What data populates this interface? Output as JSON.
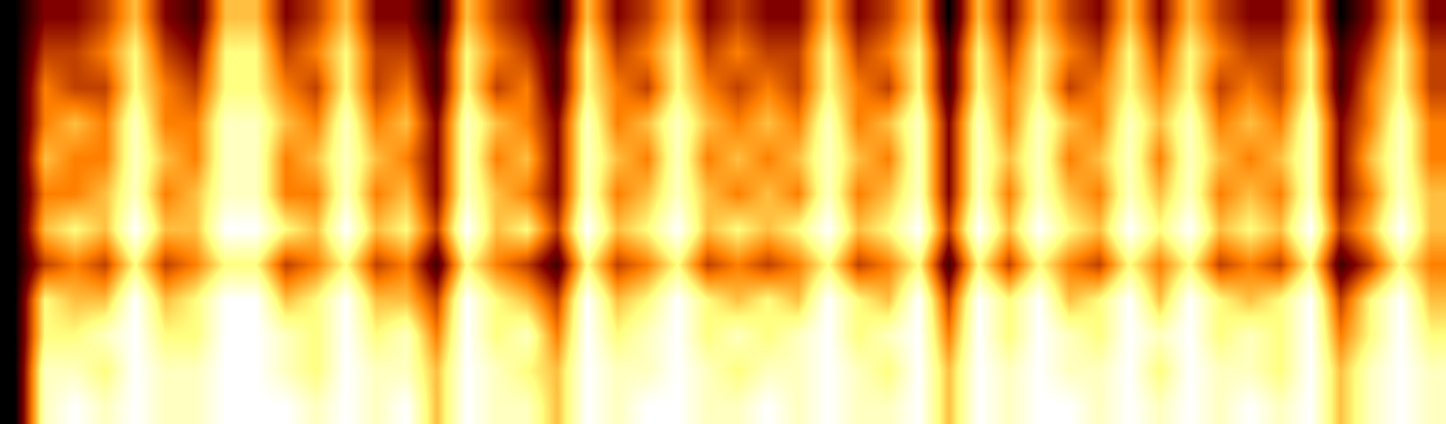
{
  "chart_data": {
    "type": "heatmap",
    "tick_labels": false,
    "grid": false,
    "cells": [
      [
        1,
        3,
        3,
        4,
        6,
        3,
        2,
        6,
        6,
        3,
        4,
        6,
        3,
        3,
        1,
        6,
        4,
        3,
        1,
        6,
        3,
        4,
        6,
        3,
        4,
        3,
        3,
        6,
        3,
        4,
        6,
        1,
        6,
        3,
        6,
        4,
        3,
        6,
        3,
        6,
        4,
        3,
        3,
        6,
        1,
        3,
        6,
        3
      ],
      [
        1,
        4,
        4,
        5,
        7,
        4,
        3,
        7,
        7,
        4,
        5,
        7,
        4,
        4,
        2,
        7,
        5,
        4,
        2,
        7,
        4,
        5,
        7,
        4,
        5,
        4,
        4,
        7,
        4,
        5,
        7,
        2,
        7,
        4,
        7,
        5,
        4,
        7,
        4,
        7,
        5,
        4,
        4,
        7,
        2,
        4,
        7,
        4
      ],
      [
        1,
        5,
        4,
        4,
        7,
        5,
        4,
        7,
        7,
        5,
        4,
        7,
        4,
        5,
        2,
        7,
        4,
        5,
        2,
        7,
        5,
        4,
        7,
        5,
        4,
        5,
        4,
        7,
        5,
        4,
        7,
        2,
        7,
        5,
        7,
        4,
        5,
        7,
        5,
        7,
        4,
        5,
        4,
        7,
        2,
        5,
        7,
        4
      ],
      [
        1,
        5,
        6,
        5,
        8,
        5,
        5,
        8,
        8,
        6,
        5,
        8,
        5,
        6,
        3,
        8,
        6,
        5,
        3,
        8,
        5,
        6,
        8,
        6,
        5,
        6,
        5,
        8,
        5,
        6,
        8,
        3,
        8,
        5,
        8,
        6,
        5,
        8,
        6,
        8,
        5,
        6,
        5,
        8,
        3,
        5,
        8,
        5
      ],
      [
        1,
        6,
        5,
        5,
        8,
        6,
        5,
        8,
        8,
        5,
        6,
        8,
        6,
        5,
        3,
        8,
        5,
        6,
        3,
        8,
        6,
        5,
        8,
        5,
        6,
        5,
        6,
        8,
        6,
        5,
        8,
        3,
        8,
        6,
        8,
        5,
        6,
        8,
        5,
        8,
        6,
        5,
        6,
        8,
        3,
        6,
        8,
        5
      ],
      [
        1,
        5,
        5,
        6,
        8,
        5,
        6,
        8,
        8,
        5,
        5,
        8,
        5,
        6,
        3,
        8,
        6,
        5,
        3,
        8,
        5,
        6,
        8,
        6,
        5,
        6,
        5,
        8,
        5,
        6,
        8,
        3,
        8,
        5,
        8,
        6,
        5,
        8,
        6,
        8,
        5,
        6,
        5,
        8,
        3,
        5,
        8,
        6
      ],
      [
        1,
        6,
        7,
        6,
        9,
        6,
        6,
        9,
        9,
        7,
        6,
        9,
        6,
        7,
        4,
        9,
        6,
        7,
        4,
        9,
        6,
        7,
        9,
        6,
        7,
        6,
        7,
        9,
        6,
        7,
        9,
        4,
        9,
        6,
        9,
        7,
        6,
        9,
        7,
        9,
        6,
        7,
        6,
        9,
        4,
        6,
        9,
        6
      ],
      [
        1,
        4,
        5,
        4,
        7,
        4,
        5,
        7,
        7,
        4,
        5,
        7,
        4,
        5,
        2,
        7,
        5,
        4,
        2,
        7,
        4,
        5,
        7,
        4,
        5,
        4,
        5,
        7,
        4,
        5,
        7,
        2,
        7,
        4,
        7,
        5,
        4,
        7,
        5,
        7,
        4,
        5,
        4,
        7,
        2,
        4,
        7,
        5
      ],
      [
        1,
        7,
        6,
        6,
        9,
        6,
        7,
        9,
        9,
        6,
        7,
        9,
        6,
        6,
        4,
        9,
        7,
        6,
        4,
        9,
        6,
        7,
        9,
        7,
        6,
        7,
        6,
        9,
        7,
        6,
        9,
        4,
        9,
        7,
        9,
        6,
        7,
        9,
        6,
        9,
        7,
        6,
        7,
        9,
        4,
        7,
        9,
        6
      ],
      [
        1,
        7,
        7,
        8,
        9,
        7,
        7,
        9,
        9,
        8,
        7,
        9,
        7,
        8,
        5,
        9,
        7,
        8,
        5,
        9,
        7,
        8,
        9,
        7,
        8,
        7,
        8,
        9,
        7,
        8,
        9,
        5,
        9,
        7,
        9,
        8,
        7,
        9,
        8,
        9,
        7,
        8,
        7,
        9,
        5,
        7,
        9,
        7
      ],
      [
        1,
        8,
        8,
        7,
        9,
        8,
        8,
        9,
        9,
        8,
        7,
        9,
        8,
        8,
        6,
        9,
        8,
        7,
        6,
        9,
        8,
        8,
        9,
        8,
        7,
        8,
        8,
        9,
        8,
        7,
        9,
        6,
        9,
        8,
        9,
        8,
        8,
        9,
        7,
        9,
        8,
        8,
        7,
        9,
        6,
        8,
        9,
        8
      ],
      [
        1,
        8,
        9,
        8,
        9,
        8,
        8,
        9,
        9,
        9,
        8,
        9,
        8,
        9,
        6,
        9,
        8,
        8,
        6,
        9,
        8,
        9,
        9,
        8,
        8,
        9,
        8,
        9,
        8,
        8,
        9,
        6,
        9,
        8,
        9,
        9,
        8,
        9,
        8,
        9,
        8,
        9,
        8,
        9,
        6,
        8,
        9,
        8
      ]
    ]
  }
}
